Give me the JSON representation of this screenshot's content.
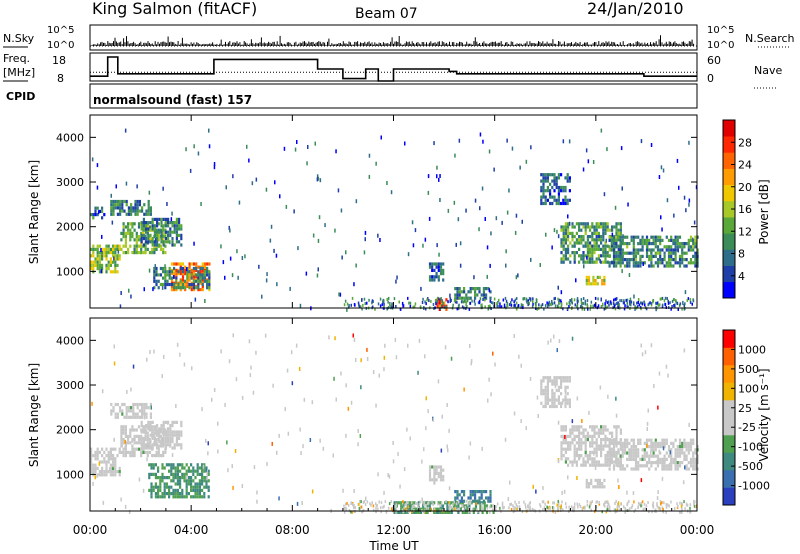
{
  "header": {
    "station": "King Salmon (fitACF)",
    "beam": "Beam 07",
    "date": "24/Jan/2010"
  },
  "status_panel": {
    "nsky_label": "N.Sky",
    "nsky_ticks": [
      "10^5",
      "10^0"
    ],
    "nsearch_label": "N.Search",
    "nsearch_ticks": [
      "10^5",
      "10^0"
    ],
    "freq_label_line1": "Freq.",
    "freq_label_line2": "[MHz]",
    "freq_ticks": [
      "18",
      "8"
    ],
    "nave_label": "Nave",
    "nave_ticks": [
      "60",
      "0"
    ],
    "cpid_label": "CPID",
    "cpid_text": "normalsound (fast) 157"
  },
  "x_axis": {
    "label": "Time UT",
    "ticks": [
      "00:00",
      "04:00",
      "08:00",
      "12:00",
      "16:00",
      "20:00",
      "00:00"
    ]
  },
  "power_colorbar": {
    "label": "Power [dB]",
    "ticks": [
      "28",
      "24",
      "20",
      "16",
      "12",
      "8",
      "4"
    ],
    "colors": [
      "#0000ff",
      "#1f3fa8",
      "#2f6e8a",
      "#3c8c5a",
      "#5aa838",
      "#a8c828",
      "#f0c800",
      "#ff9c00",
      "#ff6400",
      "#ff2800",
      "#e00000"
    ]
  },
  "velocity_colorbar": {
    "label": "Velocity [m s⁻¹]",
    "ticks": [
      "1000",
      "500",
      "100",
      "25",
      "-25",
      "-100",
      "-500",
      "-1000"
    ],
    "colors": [
      "#2b3fbf",
      "#3a6fb0",
      "#3f8a80",
      "#4fa050",
      "#c8c8c8",
      "#c8c8c8",
      "#f0b400",
      "#ff9600",
      "#ff6000",
      "#ff0000"
    ]
  },
  "chart_data": [
    {
      "type": "heatmap",
      "title": "Power [dB]",
      "xlabel": "Time UT",
      "ylabel": "Slant Range [km]",
      "xlim": [
        0,
        24
      ],
      "ylim": [
        180,
        4500
      ],
      "yticks": [
        1000,
        2000,
        3000,
        4000
      ],
      "color_range": [
        0,
        30
      ],
      "regions": [
        {
          "t0": 0.0,
          "t1": 1.2,
          "r0": 1000,
          "r1": 1600,
          "power": 14
        },
        {
          "t0": 0.0,
          "t1": 0.6,
          "r0": 2200,
          "r1": 2450,
          "power": 6
        },
        {
          "t0": 0.8,
          "t1": 2.4,
          "r0": 2300,
          "r1": 2600,
          "power": 8
        },
        {
          "t0": 1.2,
          "t1": 3.0,
          "r0": 1400,
          "r1": 2100,
          "power": 12
        },
        {
          "t0": 2.0,
          "t1": 3.6,
          "r0": 1600,
          "r1": 2200,
          "power": 8
        },
        {
          "t0": 3.2,
          "t1": 4.7,
          "r0": 600,
          "r1": 1200,
          "power": 22
        },
        {
          "t0": 2.5,
          "t1": 4.7,
          "r0": 600,
          "r1": 1100,
          "power": 8
        },
        {
          "t0": 13.4,
          "t1": 14.0,
          "r0": 800,
          "r1": 1200,
          "power": 6
        },
        {
          "t0": 13.7,
          "t1": 14.1,
          "r0": 180,
          "r1": 400,
          "power": 26
        },
        {
          "t0": 14.4,
          "t1": 15.8,
          "r0": 400,
          "r1": 650,
          "power": 8
        },
        {
          "t0": 17.8,
          "t1": 19.0,
          "r0": 2500,
          "r1": 3200,
          "power": 6
        },
        {
          "t0": 18.6,
          "t1": 21.0,
          "r0": 1200,
          "r1": 2100,
          "power": 10
        },
        {
          "t0": 20.5,
          "t1": 24.0,
          "r0": 1100,
          "r1": 1800,
          "power": 9
        },
        {
          "t0": 19.6,
          "t1": 20.3,
          "r0": 700,
          "r1": 900,
          "power": 16
        }
      ]
    },
    {
      "type": "heatmap",
      "title": "Velocity [m s⁻¹]",
      "xlabel": "Time UT",
      "ylabel": "Slant Range [km]",
      "xlim": [
        0,
        24
      ],
      "ylim": [
        180,
        4500
      ],
      "yticks": [
        1000,
        2000,
        3000,
        4000
      ],
      "color_range": [
        -1000,
        1000
      ],
      "regions": [
        {
          "t0": 0.0,
          "t1": 1.2,
          "r0": 1000,
          "r1": 1600,
          "velocity": 0
        },
        {
          "t0": 1.2,
          "t1": 3.0,
          "r0": 1400,
          "r1": 2100,
          "velocity": 0
        },
        {
          "t0": 2.0,
          "t1": 3.6,
          "r0": 1600,
          "r1": 2200,
          "velocity": 0
        },
        {
          "t0": 0.8,
          "t1": 2.4,
          "r0": 2300,
          "r1": 2600,
          "velocity": 0
        },
        {
          "t0": 2.3,
          "t1": 4.7,
          "r0": 500,
          "r1": 1250,
          "velocity": -100
        },
        {
          "t0": 13.4,
          "t1": 14.0,
          "r0": 800,
          "r1": 1200,
          "velocity": 0
        },
        {
          "t0": 12.0,
          "t1": 16.0,
          "r0": 180,
          "r1": 400,
          "velocity": -100
        },
        {
          "t0": 14.4,
          "t1": 15.8,
          "r0": 400,
          "r1": 650,
          "velocity": -500
        },
        {
          "t0": 17.8,
          "t1": 19.0,
          "r0": 2500,
          "r1": 3200,
          "velocity": 0
        },
        {
          "t0": 18.6,
          "t1": 21.0,
          "r0": 1200,
          "r1": 2100,
          "velocity": 0
        },
        {
          "t0": 20.5,
          "t1": 24.0,
          "r0": 1100,
          "r1": 1800,
          "velocity": 0
        },
        {
          "t0": 19.6,
          "t1": 20.3,
          "r0": 700,
          "r1": 900,
          "velocity": 0
        }
      ]
    }
  ],
  "freq_series": {
    "t": [
      0.0,
      0.7,
      0.7,
      1.1,
      1.1,
      4.9,
      4.9,
      9.0,
      9.0,
      10.0,
      10.0,
      10.9,
      10.9,
      11.4,
      11.4,
      12.0,
      12.0,
      14.2,
      14.2,
      14.5,
      14.5,
      21.9,
      21.9,
      24.0
    ],
    "mhz": [
      10,
      10,
      18,
      18,
      11,
      11,
      17,
      17,
      13,
      13,
      9,
      9,
      13,
      13,
      8,
      8,
      13,
      13,
      12,
      12,
      11,
      11,
      10,
      10
    ]
  },
  "nave_series": {
    "t": [
      0,
      24
    ],
    "nave": [
      22,
      22
    ]
  }
}
